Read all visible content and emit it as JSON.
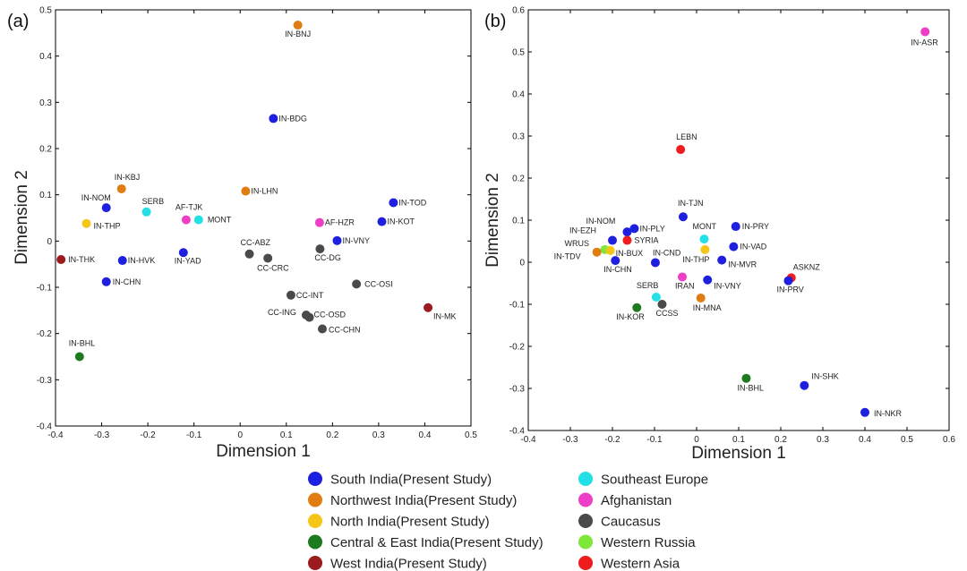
{
  "legend": [
    {
      "label": "South India(Present Study)",
      "color": "#1f1fe0"
    },
    {
      "label": "Northwest India(Present Study)",
      "color": "#e07c12"
    },
    {
      "label": "North India(Present Study)",
      "color": "#f5c518"
    },
    {
      "label": "Central & East India(Present Study)",
      "color": "#1e7a1e"
    },
    {
      "label": "West India(Present Study)",
      "color": "#9b1b1f"
    },
    {
      "label": "Southeast Europe",
      "color": "#22e0e6"
    },
    {
      "label": "Afghanistan",
      "color": "#ee3ec6"
    },
    {
      "label": "Caucasus",
      "color": "#4a4a4a"
    },
    {
      "label": "Western Russia",
      "color": "#7ee83a"
    },
    {
      "label": "Western Asia",
      "color": "#ee1c1c"
    }
  ],
  "chart_data": [
    {
      "type": "scatter",
      "panel": "(a)",
      "xlabel": "Dimension 1",
      "ylabel": "Dimension 2",
      "xlim": [
        -0.4,
        0.5
      ],
      "ylim": [
        -0.4,
        0.5
      ],
      "xticks": [
        "-0.4",
        "-0.3",
        "-0.2",
        "-0.1",
        "0",
        "0.1",
        "0.2",
        "0.3",
        "0.4",
        "0.5"
      ],
      "yticks": [
        "-0.4",
        "-0.3",
        "-0.2",
        "-0.1",
        "0",
        "0.1",
        "0.2",
        "0.3",
        "0.4",
        "0.5"
      ],
      "points": [
        {
          "label": "IN-BNJ",
          "x": 0.125,
          "y": 0.467,
          "group": "Northwest India(Present Study)"
        },
        {
          "label": "IN-BDG",
          "x": 0.072,
          "y": 0.265,
          "group": "South India(Present Study)"
        },
        {
          "label": "IN-KBJ",
          "x": -0.257,
          "y": 0.113,
          "group": "Northwest India(Present Study)"
        },
        {
          "label": "IN-NOM",
          "x": -0.29,
          "y": 0.072,
          "group": "South India(Present Study)"
        },
        {
          "label": "IN-THP",
          "x": -0.333,
          "y": 0.038,
          "group": "North India(Present Study)"
        },
        {
          "label": "SERB",
          "x": -0.203,
          "y": 0.063,
          "group": "Southeast Europe"
        },
        {
          "label": "AF-TJK",
          "x": -0.117,
          "y": 0.046,
          "group": "Afghanistan"
        },
        {
          "label": "MONT",
          "x": -0.09,
          "y": 0.046,
          "group": "Southeast Europe"
        },
        {
          "label": "IN-LHN",
          "x": 0.012,
          "y": 0.108,
          "group": "Northwest India(Present Study)"
        },
        {
          "label": "IN-TOD",
          "x": 0.332,
          "y": 0.083,
          "group": "South India(Present Study)"
        },
        {
          "label": "IN-KOT",
          "x": 0.307,
          "y": 0.042,
          "group": "South India(Present Study)"
        },
        {
          "label": "AF-HZR",
          "x": 0.172,
          "y": 0.04,
          "group": "Afghanistan"
        },
        {
          "label": "IN-VNY",
          "x": 0.21,
          "y": 0.001,
          "group": "South India(Present Study)"
        },
        {
          "label": "CC-DG",
          "x": 0.173,
          "y": -0.017,
          "group": "Caucasus"
        },
        {
          "label": "CC-ABZ",
          "x": 0.02,
          "y": -0.028,
          "group": "Caucasus"
        },
        {
          "label": "CC-CRC",
          "x": 0.06,
          "y": -0.037,
          "group": "Caucasus"
        },
        {
          "label": "IN-YAD",
          "x": -0.123,
          "y": -0.025,
          "group": "South India(Present Study)"
        },
        {
          "label": "IN-THK",
          "x": -0.388,
          "y": -0.04,
          "group": "West India(Present Study)"
        },
        {
          "label": "IN-HVK",
          "x": -0.255,
          "y": -0.042,
          "group": "South India(Present Study)"
        },
        {
          "label": "IN-CHN",
          "x": -0.29,
          "y": -0.088,
          "group": "South India(Present Study)"
        },
        {
          "label": "CC-OSI",
          "x": 0.252,
          "y": -0.093,
          "group": "Caucasus"
        },
        {
          "label": "CC-INT",
          "x": 0.11,
          "y": -0.117,
          "group": "Caucasus"
        },
        {
          "label": "CC-ING",
          "x": 0.143,
          "y": -0.16,
          "group": "Caucasus"
        },
        {
          "label": "CC-OSD",
          "x": 0.15,
          "y": -0.165,
          "group": "Caucasus"
        },
        {
          "label": "CC-CHN",
          "x": 0.178,
          "y": -0.19,
          "group": "Caucasus"
        },
        {
          "label": "IN-MK",
          "x": 0.407,
          "y": -0.144,
          "group": "West India(Present Study)"
        },
        {
          "label": "IN-BHL",
          "x": -0.348,
          "y": -0.25,
          "group": "Central & East India(Present Study)"
        }
      ]
    },
    {
      "type": "scatter",
      "panel": "(b)",
      "xlabel": "Dimension 1",
      "ylabel": "Dimension 2",
      "xlim": [
        -0.4,
        0.6
      ],
      "ylim": [
        -0.4,
        0.6
      ],
      "xticks": [
        "-0.4",
        "-0.3",
        "-0.2",
        "-0.1",
        "0",
        "0.1",
        "0.2",
        "0.3",
        "0.4",
        "0.5",
        "0.6"
      ],
      "yticks": [
        "-0.4",
        "-0.3",
        "-0.2",
        "-0.1",
        "0",
        "0.1",
        "0.2",
        "0.3",
        "0.4",
        "0.5",
        "0.6"
      ],
      "points": [
        {
          "label": "IN-ASR",
          "x": 0.543,
          "y": 0.548,
          "group": "Afghanistan"
        },
        {
          "label": "LEBN",
          "x": -0.038,
          "y": 0.268,
          "group": "Western Asia"
        },
        {
          "label": "IN-TJN",
          "x": -0.032,
          "y": 0.108,
          "group": "South India(Present Study)"
        },
        {
          "label": "IN-NOM",
          "x": -0.165,
          "y": 0.072,
          "group": "South India(Present Study)"
        },
        {
          "label": "IN-PLY",
          "x": -0.148,
          "y": 0.08,
          "group": "South India(Present Study)"
        },
        {
          "label": "IN-PRY",
          "x": 0.093,
          "y": 0.085,
          "group": "South India(Present Study)"
        },
        {
          "label": "MONT",
          "x": 0.018,
          "y": 0.055,
          "group": "Southeast Europe"
        },
        {
          "label": "IN-VAD",
          "x": 0.088,
          "y": 0.037,
          "group": "South India(Present Study)"
        },
        {
          "label": "IN-EZH",
          "x": -0.2,
          "y": 0.052,
          "group": "South India(Present Study)"
        },
        {
          "label": "SYRIA",
          "x": -0.165,
          "y": 0.052,
          "group": "Western Asia"
        },
        {
          "label": "WRUS",
          "x": -0.218,
          "y": 0.03,
          "group": "Western Russia"
        },
        {
          "label": "IN-BUX",
          "x": -0.205,
          "y": 0.028,
          "group": "North India(Present Study)"
        },
        {
          "label": "IN-TDV",
          "x": -0.237,
          "y": 0.024,
          "group": "Northwest India(Present Study)"
        },
        {
          "label": "IN-THP",
          "x": 0.02,
          "y": 0.03,
          "group": "North India(Present Study)"
        },
        {
          "label": "IN-CND",
          "x": -0.098,
          "y": -0.001,
          "group": "South India(Present Study)"
        },
        {
          "label": "IN-CHN",
          "x": -0.193,
          "y": 0.004,
          "group": "South India(Present Study)"
        },
        {
          "label": "IN-MVR",
          "x": 0.06,
          "y": 0.005,
          "group": "South India(Present Study)"
        },
        {
          "label": "ASKNZ",
          "x": 0.225,
          "y": -0.037,
          "group": "Western Asia"
        },
        {
          "label": "IN-PRV",
          "x": 0.218,
          "y": -0.044,
          "group": "South India(Present Study)"
        },
        {
          "label": "IRAN",
          "x": -0.034,
          "y": -0.035,
          "group": "Afghanistan"
        },
        {
          "label": "IN-VNY",
          "x": 0.026,
          "y": -0.042,
          "group": "South India(Present Study)"
        },
        {
          "label": "SERB",
          "x": -0.096,
          "y": -0.083,
          "group": "Southeast Europe"
        },
        {
          "label": "IN-MNA",
          "x": 0.01,
          "y": -0.085,
          "group": "Northwest India(Present Study)"
        },
        {
          "label": "CCSS",
          "x": -0.082,
          "y": -0.1,
          "group": "Caucasus"
        },
        {
          "label": "IN-KOR",
          "x": -0.142,
          "y": -0.108,
          "group": "Central & East India(Present Study)"
        },
        {
          "label": "IN-BHL",
          "x": 0.118,
          "y": -0.276,
          "group": "Central & East India(Present Study)"
        },
        {
          "label": "IN-SHK",
          "x": 0.256,
          "y": -0.293,
          "group": "South India(Present Study)"
        },
        {
          "label": "IN-NKR",
          "x": 0.4,
          "y": -0.357,
          "group": "South India(Present Study)"
        }
      ]
    }
  ]
}
